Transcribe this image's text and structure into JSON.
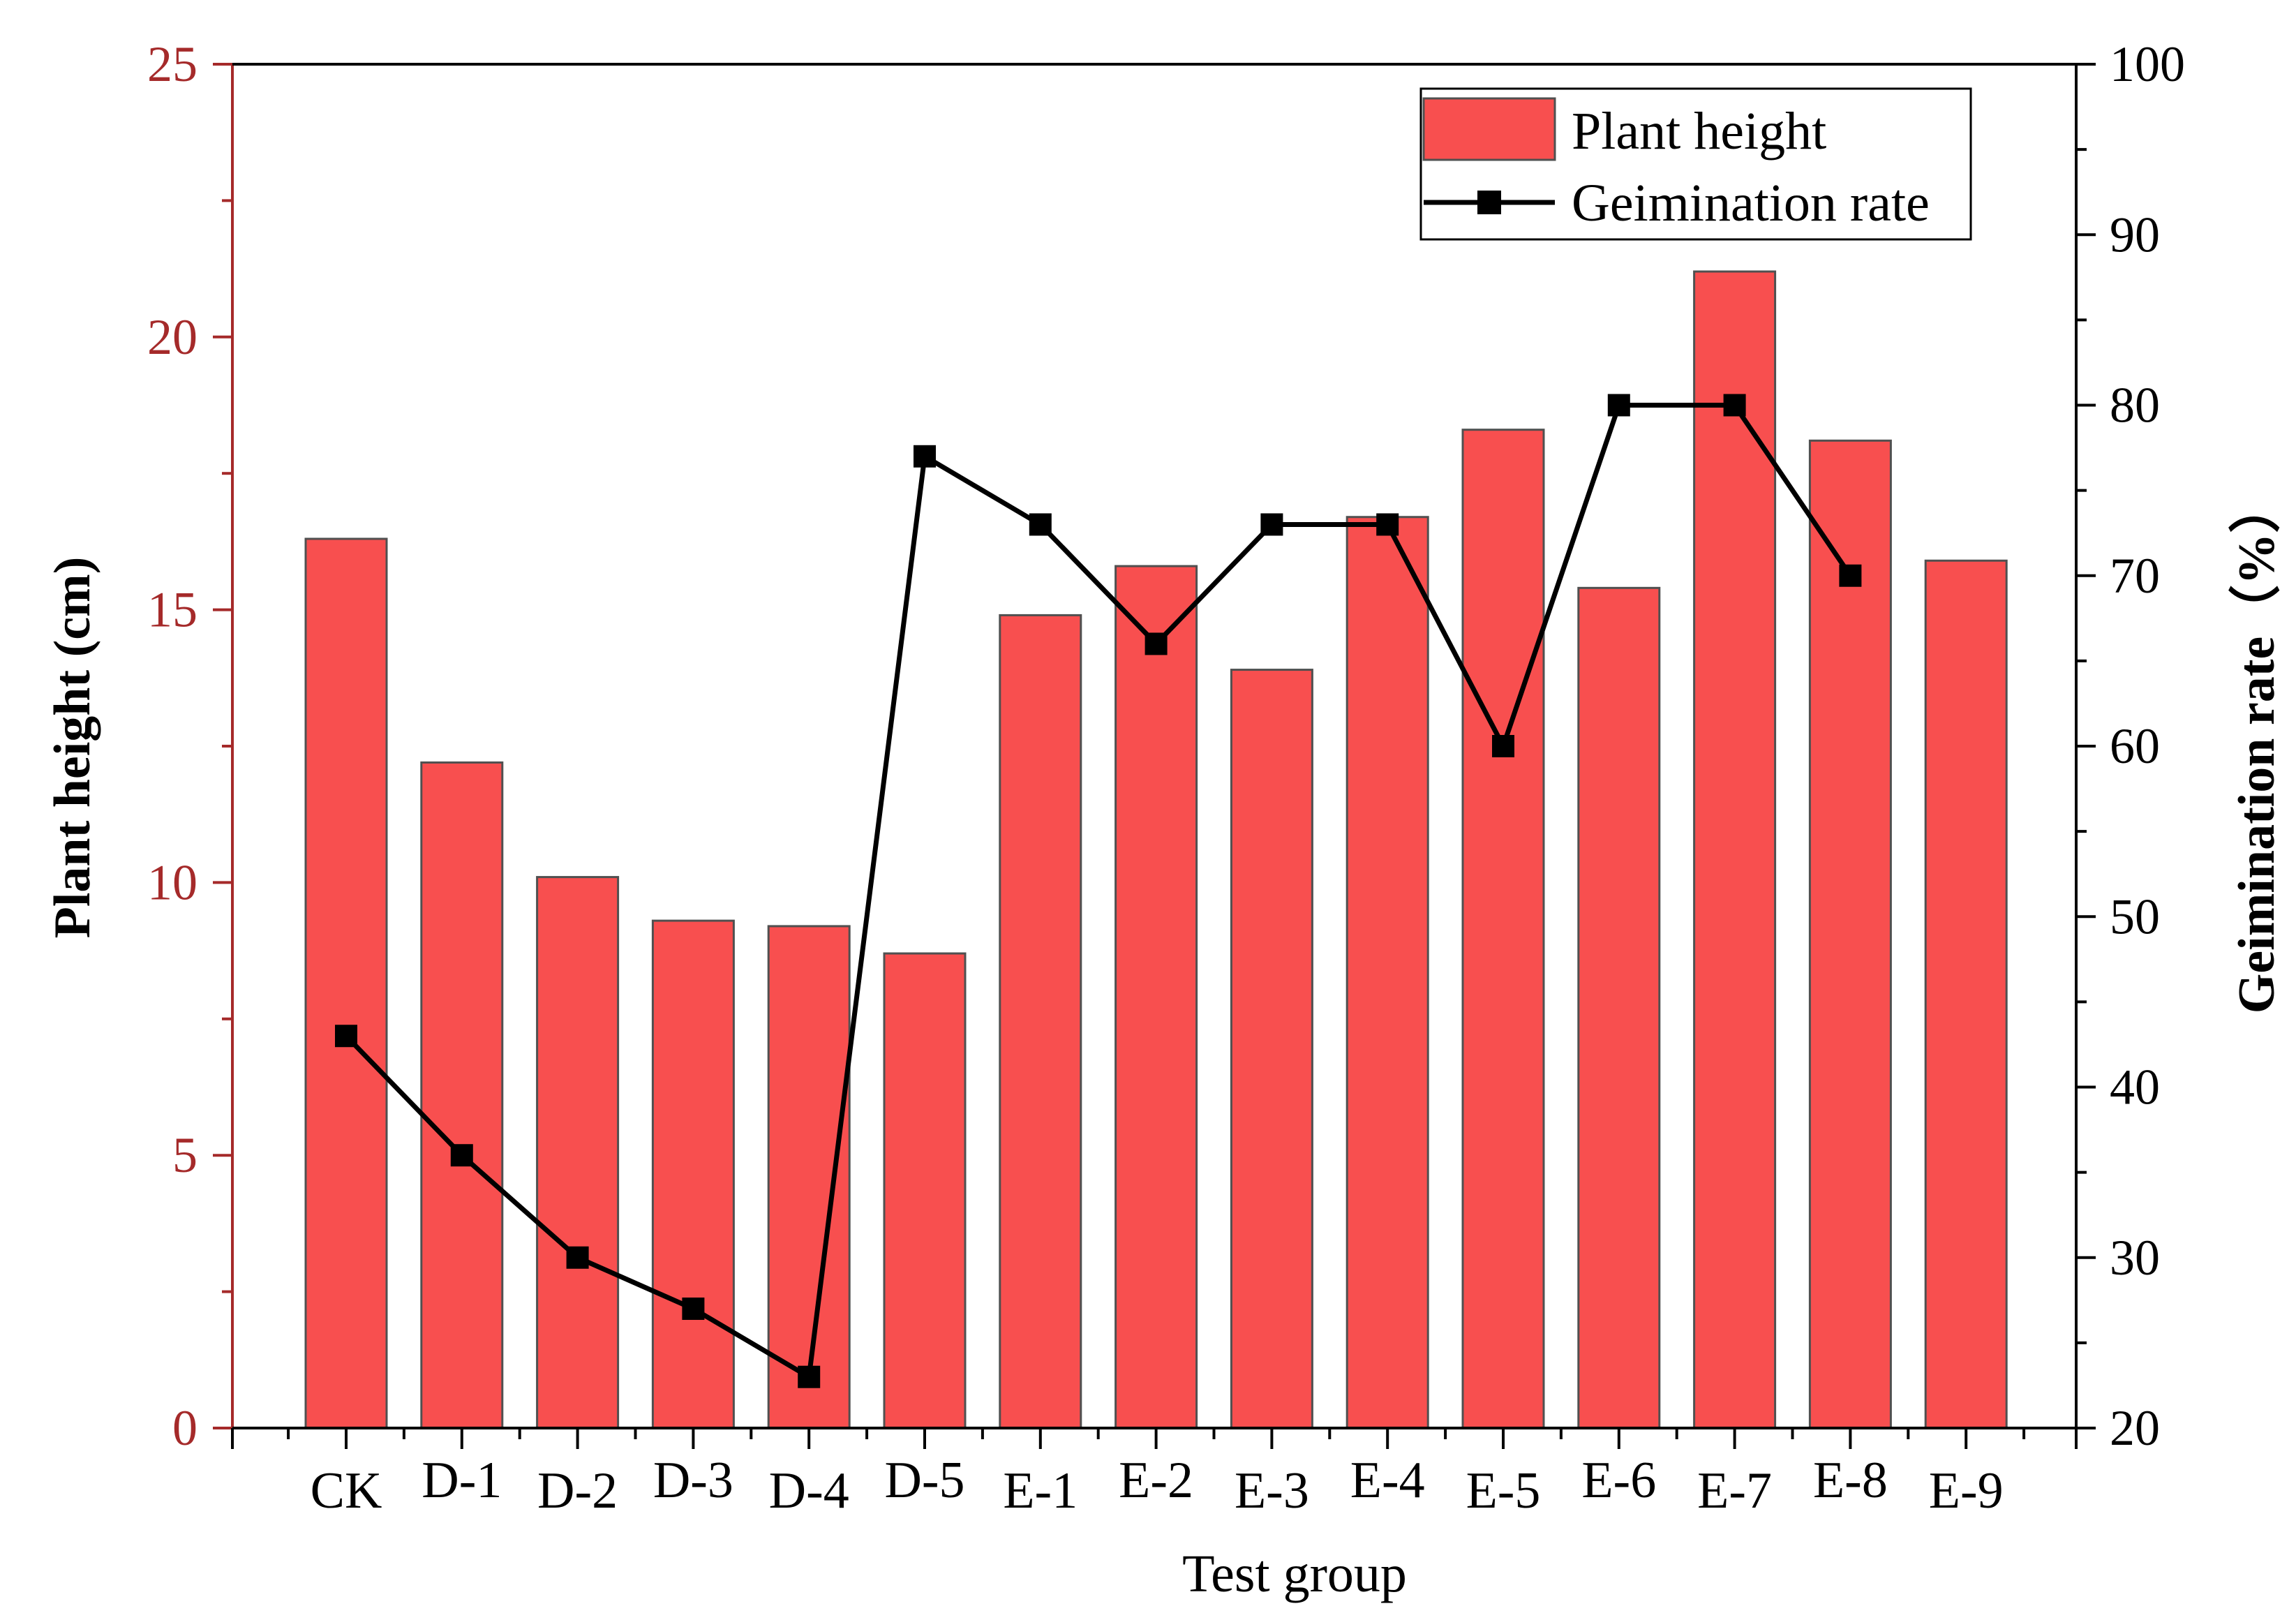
{
  "chart_data": {
    "type": "bar+line",
    "title": "",
    "xlabel": "Test group",
    "ylabel_left": "Plant height (cm)",
    "ylabel_right": "Geimination rate（%）",
    "categories": [
      "CK",
      "D-1",
      "D-2",
      "D-3",
      "D-4",
      "D-5",
      "E-1",
      "E-2",
      "E-3",
      "E-4",
      "E-5",
      "E-6",
      "E-7",
      "E-8",
      "E-9"
    ],
    "series": [
      {
        "name": "Plant height",
        "type": "bar",
        "axis": "left",
        "values": [
          16.3,
          12.2,
          10.1,
          9.3,
          9.2,
          8.7,
          14.9,
          15.8,
          13.9,
          16.7,
          18.3,
          15.4,
          21.2,
          18.1,
          15.9
        ]
      },
      {
        "name": "Geimination rate",
        "type": "line",
        "axis": "right",
        "values": [
          43,
          36,
          30,
          27,
          23,
          77,
          73,
          66,
          73,
          73,
          60,
          80,
          80,
          70,
          null
        ]
      }
    ],
    "ylim_left": [
      0,
      25
    ],
    "yticks_left": [
      "0",
      "5",
      "10",
      "15",
      "20",
      "25"
    ],
    "ylim_right": [
      20,
      100
    ],
    "yticks_right": [
      "20",
      "30",
      "40",
      "50",
      "60",
      "70",
      "80",
      "90",
      "100"
    ],
    "grid": false,
    "legend_position": "top-right",
    "colors": {
      "bar_fill": "#f84f4f",
      "bar_edge": "#505050",
      "line": "#000000",
      "left_axis": "#a52a2a",
      "axis": "#000000"
    }
  }
}
